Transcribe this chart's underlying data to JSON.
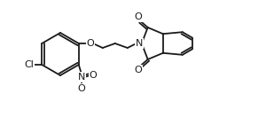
{
  "bg_color": "#ffffff",
  "line_color": "#1a1a1a",
  "lw": 1.3,
  "figsize": [
    3.0,
    1.41
  ],
  "dpi": 100,
  "xlim": [
    0,
    300
  ],
  "ylim": [
    0,
    141
  ]
}
